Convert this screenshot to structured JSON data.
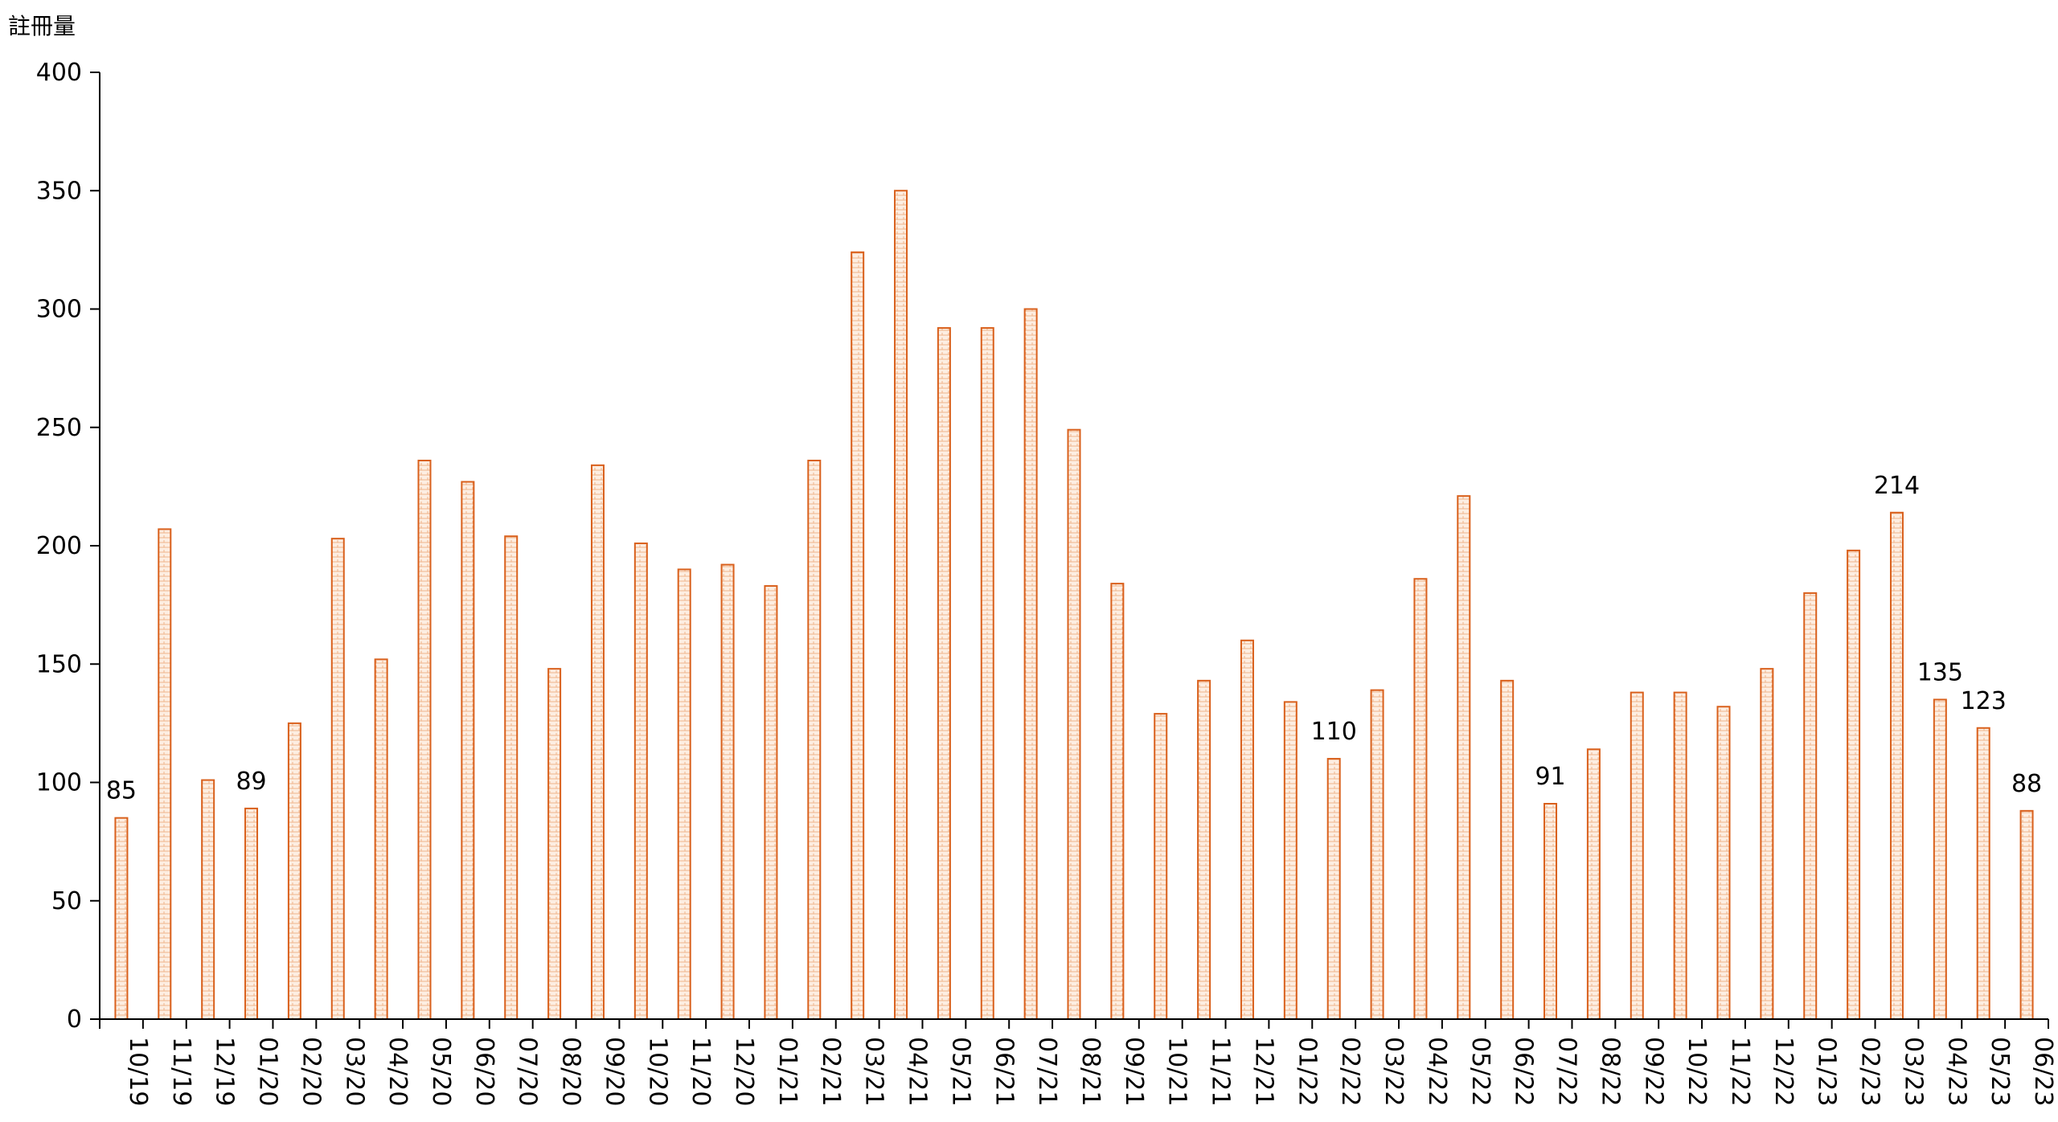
{
  "chart_data": {
    "type": "bar",
    "ylabel": "註冊量",
    "xlabel": "",
    "title": "",
    "ylim": [
      0,
      400
    ],
    "y_ticks": [
      0,
      50,
      100,
      150,
      200,
      250,
      300,
      350,
      400
    ],
    "grid": false,
    "legend": "none",
    "colors": {
      "bar_stroke": "#d9601c",
      "bar_fill": "#fde9d9",
      "bar_pattern": "#e8a070",
      "axis": "#000000"
    },
    "categories": [
      "10/19",
      "11/19",
      "12/19",
      "01/20",
      "02/20",
      "03/20",
      "04/20",
      "05/20",
      "06/20",
      "07/20",
      "08/20",
      "09/20",
      "10/20",
      "11/20",
      "12/20",
      "01/21",
      "02/21",
      "03/21",
      "04/21",
      "05/21",
      "06/21",
      "07/21",
      "08/21",
      "09/21",
      "10/21",
      "11/21",
      "12/21",
      "01/22",
      "02/22",
      "03/22",
      "04/22",
      "05/22",
      "06/22",
      "07/22",
      "08/22",
      "09/22",
      "10/22",
      "11/22",
      "12/22",
      "01/23",
      "02/23",
      "03/23",
      "04/23",
      "05/23",
      "06/23"
    ],
    "values": [
      85,
      207,
      101,
      89,
      125,
      203,
      152,
      236,
      227,
      204,
      148,
      234,
      201,
      190,
      192,
      183,
      236,
      324,
      350,
      292,
      292,
      300,
      249,
      184,
      129,
      143,
      160,
      134,
      110,
      139,
      186,
      221,
      143,
      91,
      114,
      138,
      138,
      132,
      148,
      180,
      198,
      214,
      135,
      123,
      88
    ],
    "data_labels": [
      {
        "category": "10/19",
        "text": "85"
      },
      {
        "category": "01/20",
        "text": "89"
      },
      {
        "category": "02/22",
        "text": "110"
      },
      {
        "category": "07/22",
        "text": "91"
      },
      {
        "category": "03/23",
        "text": "214"
      },
      {
        "category": "04/23",
        "text": "135"
      },
      {
        "category": "05/23",
        "text": "123"
      },
      {
        "category": "06/23",
        "text": "88"
      }
    ]
  }
}
